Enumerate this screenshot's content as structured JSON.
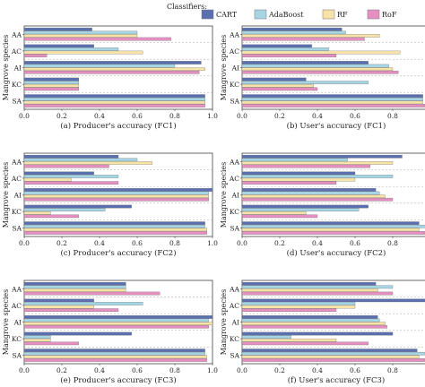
{
  "legend": {
    "title": "Classifiers:",
    "entries": [
      {
        "name": "CART",
        "color": "#5a6fb0"
      },
      {
        "name": "AdaBoost",
        "color": "#a6d6e6"
      },
      {
        "name": "RF",
        "color": "#f7e3a8"
      },
      {
        "name": "RoF",
        "color": "#e58fc0"
      }
    ]
  },
  "ylabel": "Mangrove species",
  "categories": [
    "AA",
    "AC",
    "AI",
    "KC",
    "SA"
  ],
  "xticks": [
    "0.0",
    "0.2",
    "0.4",
    "0.6",
    "0.8",
    "1.0"
  ],
  "chart_data": [
    {
      "type": "bar",
      "orientation": "horizontal",
      "title": "(a) Producer's accuracy (FC1)",
      "categories": [
        "AA",
        "AC",
        "AI",
        "KC",
        "SA"
      ],
      "xlim": [
        0,
        1
      ],
      "series": [
        {
          "name": "CART",
          "values": [
            0.36,
            0.37,
            0.94,
            0.29,
            0.96
          ]
        },
        {
          "name": "AdaBoost",
          "values": [
            0.6,
            0.5,
            0.8,
            0.29,
            0.96
          ]
        },
        {
          "name": "RF",
          "values": [
            0.6,
            0.63,
            0.96,
            0.29,
            0.96
          ]
        },
        {
          "name": "RoF",
          "values": [
            0.78,
            0.12,
            0.93,
            0.29,
            0.96
          ]
        }
      ]
    },
    {
      "type": "bar",
      "orientation": "horizontal",
      "title": "(b) User's accuracy (FC1)",
      "categories": [
        "AA",
        "AC",
        "AI",
        "KC",
        "SA"
      ],
      "xlim": [
        0,
        1
      ],
      "series": [
        {
          "name": "CART",
          "values": [
            0.53,
            0.37,
            0.67,
            0.34,
            0.96
          ]
        },
        {
          "name": "AdaBoost",
          "values": [
            0.55,
            0.46,
            0.78,
            0.67,
            0.96
          ]
        },
        {
          "name": "RF",
          "values": [
            0.73,
            0.84,
            0.8,
            0.38,
            0.96
          ]
        },
        {
          "name": "RoF",
          "values": [
            0.65,
            0.5,
            0.83,
            0.4,
            0.97
          ]
        }
      ]
    },
    {
      "type": "bar",
      "orientation": "horizontal",
      "title": "(c) Producer's accuracy (FC2)",
      "categories": [
        "AA",
        "AC",
        "AI",
        "KC",
        "SA"
      ],
      "xlim": [
        0,
        1
      ],
      "series": [
        {
          "name": "CART",
          "values": [
            0.5,
            0.37,
            1.0,
            0.57,
            0.96
          ]
        },
        {
          "name": "AdaBoost",
          "values": [
            0.6,
            0.5,
            0.98,
            0.43,
            0.96
          ]
        },
        {
          "name": "RF",
          "values": [
            0.68,
            0.25,
            0.98,
            0.14,
            0.97
          ]
        },
        {
          "name": "RoF",
          "values": [
            0.45,
            0.5,
            0.98,
            0.29,
            0.97
          ]
        }
      ]
    },
    {
      "type": "bar",
      "orientation": "horizontal",
      "title": "(d) User's accuracy (FC2)",
      "categories": [
        "AA",
        "AC",
        "AI",
        "KC",
        "SA"
      ],
      "xlim": [
        0,
        1
      ],
      "series": [
        {
          "name": "CART",
          "values": [
            0.85,
            0.6,
            0.71,
            0.67,
            0.94
          ]
        },
        {
          "name": "AdaBoost",
          "values": [
            0.56,
            0.8,
            0.73,
            0.62,
            0.98
          ]
        },
        {
          "name": "RF",
          "values": [
            0.8,
            0.6,
            0.76,
            0.34,
            0.94
          ]
        },
        {
          "name": "RoF",
          "values": [
            0.68,
            0.5,
            0.8,
            0.4,
            0.97
          ]
        }
      ]
    },
    {
      "type": "bar",
      "orientation": "horizontal",
      "title": "(e) Producer's accuracy (FC3)",
      "categories": [
        "AA",
        "AC",
        "AI",
        "KC",
        "SA"
      ],
      "xlim": [
        0,
        1
      ],
      "series": [
        {
          "name": "CART",
          "values": [
            0.54,
            0.37,
            1.0,
            0.57,
            0.96
          ]
        },
        {
          "name": "AdaBoost",
          "values": [
            0.54,
            0.63,
            0.98,
            0.14,
            0.96
          ]
        },
        {
          "name": "RF",
          "values": [
            0.54,
            0.37,
            1.0,
            0.14,
            0.97
          ]
        },
        {
          "name": "RoF",
          "values": [
            0.72,
            0.5,
            0.98,
            0.29,
            0.97
          ]
        }
      ]
    },
    {
      "type": "bar",
      "orientation": "horizontal",
      "title": "(f) User's accuracy (FC3)",
      "categories": [
        "AA",
        "AC",
        "AI",
        "KC",
        "SA"
      ],
      "xlim": [
        0,
        1
      ],
      "series": [
        {
          "name": "CART",
          "values": [
            0.71,
            1.0,
            0.72,
            0.8,
            0.93
          ]
        },
        {
          "name": "AdaBoost",
          "values": [
            0.8,
            0.6,
            0.73,
            0.26,
            0.97
          ]
        },
        {
          "name": "RF",
          "values": [
            0.72,
            0.6,
            0.76,
            0.5,
            0.94
          ]
        },
        {
          "name": "RoF",
          "values": [
            0.8,
            0.5,
            0.77,
            0.67,
            0.97
          ]
        }
      ]
    }
  ]
}
